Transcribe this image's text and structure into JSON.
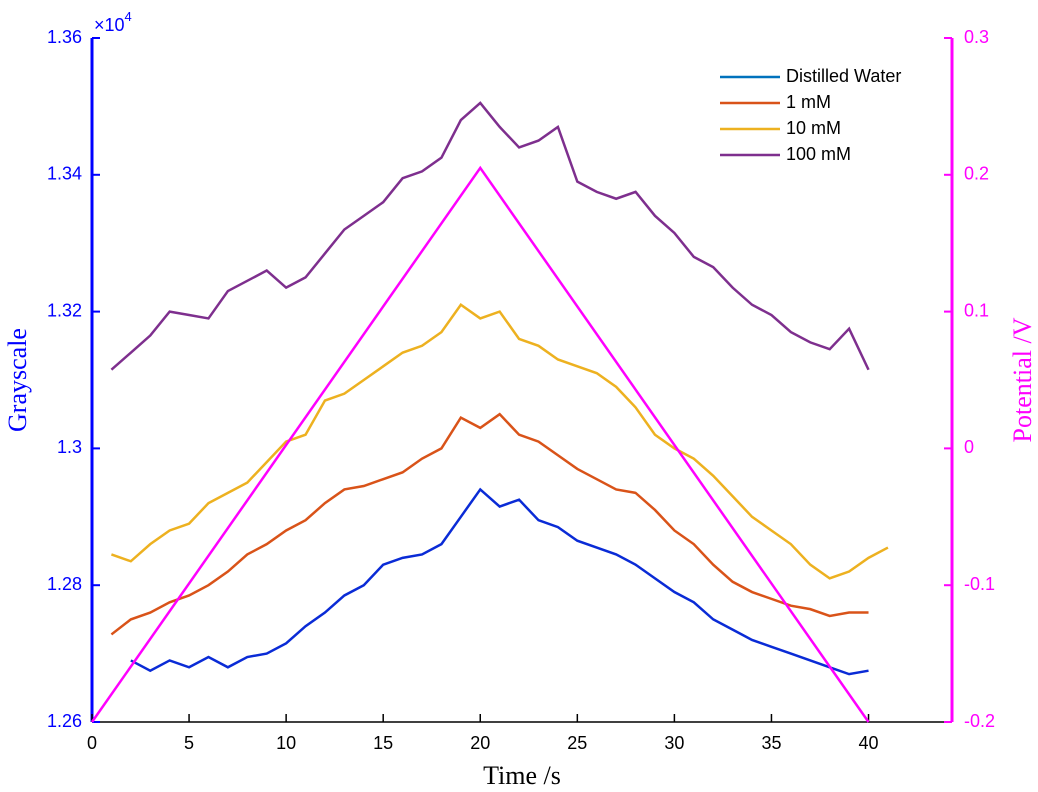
{
  "chart_data": {
    "type": "line",
    "x_label": "Time /s",
    "y_label": "Grayscale",
    "y2_label": "Potential /V",
    "y_multiplier": {
      "base": "×10",
      "exponent": "4"
    },
    "x": [
      1,
      2,
      3,
      4,
      5,
      6,
      7,
      8,
      9,
      10,
      11,
      12,
      13,
      14,
      15,
      16,
      17,
      18,
      19,
      20,
      21,
      22,
      23,
      24,
      25,
      26,
      27,
      28,
      29,
      30,
      31,
      32,
      33,
      34,
      35,
      36,
      37,
      38,
      39,
      40,
      41
    ],
    "xlim": [
      0,
      44.3
    ],
    "xticks": [
      0,
      5,
      10,
      15,
      20,
      25,
      30,
      35,
      40
    ],
    "ylim": [
      12600,
      13600
    ],
    "yticks": [
      {
        "value": 12600,
        "label": "1.26"
      },
      {
        "value": 12800,
        "label": "1.28"
      },
      {
        "value": 13000,
        "label": "1.3"
      },
      {
        "value": 13200,
        "label": "1.32"
      },
      {
        "value": 13400,
        "label": "1.34"
      },
      {
        "value": 13600,
        "label": "1.36"
      }
    ],
    "y2lim": [
      -0.2,
      0.3
    ],
    "y2ticks": [
      -0.2,
      -0.1,
      0,
      0.1,
      0.2,
      0.3
    ],
    "legend": "upper right",
    "y_axis_color": "#0000ff",
    "y2_axis_color": "#ff00ff",
    "series": [
      {
        "name": "Distilled Water",
        "color": "#0a2bd6",
        "legend_color": "#0072bd",
        "values": [
          null,
          12690,
          12675,
          12690,
          12680,
          12695,
          12680,
          12695,
          12700,
          12715,
          12740,
          12760,
          12785,
          12800,
          12830,
          12840,
          12845,
          12860,
          12900,
          12940,
          12915,
          12925,
          12895,
          12885,
          12865,
          12855,
          12845,
          12830,
          12810,
          12790,
          12775,
          12750,
          12735,
          12720,
          12710,
          12700,
          12690,
          12680,
          12670,
          12675,
          null
        ]
      },
      {
        "name": "1 mM",
        "color": "#d95319",
        "values": [
          12728,
          12750,
          12760,
          12775,
          12785,
          12800,
          12820,
          12845,
          12860,
          12880,
          12895,
          12920,
          12940,
          12945,
          12955,
          12965,
          12985,
          13000,
          13045,
          13030,
          13050,
          13020,
          13010,
          12990,
          12970,
          12955,
          12940,
          12935,
          12910,
          12880,
          12860,
          12830,
          12805,
          12790,
          12780,
          12770,
          12765,
          12755,
          12760,
          12760,
          null
        ]
      },
      {
        "name": "10 mM",
        "color": "#edb120",
        "values": [
          12845,
          12835,
          12860,
          12880,
          12890,
          12920,
          12935,
          12950,
          12980,
          13010,
          13020,
          13070,
          13080,
          13100,
          13120,
          13140,
          13150,
          13170,
          13210,
          13190,
          13200,
          13160,
          13150,
          13130,
          13120,
          13110,
          13090,
          13060,
          13020,
          13000,
          12985,
          12960,
          12930,
          12900,
          12880,
          12860,
          12830,
          12810,
          12820,
          12840,
          12855
        ]
      },
      {
        "name": "100 mM",
        "color": "#7e2f8e",
        "values": [
          13115,
          13140,
          13165,
          13200,
          13195,
          13190,
          13230,
          13245,
          13260,
          13235,
          13250,
          13285,
          13320,
          13340,
          13360,
          13395,
          13405,
          13425,
          13480,
          13505,
          13470,
          13440,
          13450,
          13470,
          13390,
          13375,
          13365,
          13375,
          13340,
          13315,
          13280,
          13265,
          13235,
          13210,
          13195,
          13170,
          13155,
          13145,
          13175,
          13115,
          null
        ]
      },
      {
        "color": "#ff00ff",
        "axis": "y2",
        "x": [
          0,
          20,
          40
        ],
        "values": [
          -0.2,
          0.205,
          -0.2
        ]
      }
    ]
  }
}
